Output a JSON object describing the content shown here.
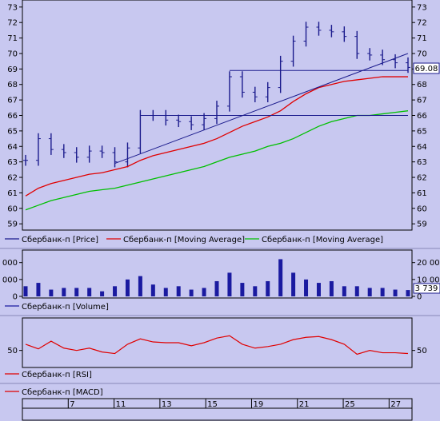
{
  "colors": {
    "background": "#c8c8f0",
    "price": "#1a1a8c",
    "ma_fast": "#e00000",
    "ma_slow": "#00c000",
    "rsi": "#e00000",
    "volume": "#1a1aa0",
    "axis": "#000000",
    "grid": "#a8a8d8",
    "last_value_bg": "#ffffff"
  },
  "chart_data": [
    {
      "type": "line",
      "panel": "price",
      "y_ticks": [
        59,
        60,
        61,
        62,
        63,
        64,
        65,
        66,
        67,
        68,
        69,
        70,
        71,
        72,
        73
      ],
      "ylim": [
        58.7,
        73.3
      ],
      "grid": false,
      "legend_position": "bottom",
      "last_value_label": "69.08",
      "series": [
        {
          "name": "Сбербанк-п [Price]",
          "style": "ohlc-bars",
          "x": [
            0,
            1,
            2,
            3,
            4,
            5,
            6,
            7,
            8,
            9,
            10,
            11,
            12,
            13,
            14,
            15,
            16,
            17,
            18,
            19,
            20,
            21,
            22,
            23,
            24,
            25,
            26,
            27,
            28,
            29,
            30
          ],
          "values": [
            63.1,
            64.5,
            63.8,
            63.6,
            63.3,
            63.7,
            63.6,
            63.0,
            63.9,
            66.0,
            66.0,
            65.7,
            65.6,
            65.4,
            65.8,
            66.6,
            68.5,
            67.5,
            67.2,
            67.8,
            69.5,
            70.8,
            71.7,
            71.5,
            71.4,
            71.1,
            70.0,
            69.9,
            69.6,
            69.4,
            69.1
          ]
        },
        {
          "name": "Сбербанк-п [Moving Average]",
          "x": [
            0,
            1,
            2,
            3,
            4,
            5,
            6,
            7,
            8,
            9,
            10,
            11,
            12,
            13,
            14,
            15,
            16,
            17,
            18,
            19,
            20,
            21,
            22,
            23,
            24,
            25,
            26,
            27,
            28,
            29,
            30
          ],
          "values": [
            60.8,
            61.3,
            61.6,
            61.8,
            62.0,
            62.2,
            62.3,
            62.5,
            62.7,
            63.1,
            63.4,
            63.6,
            63.8,
            64.0,
            64.2,
            64.5,
            64.9,
            65.3,
            65.6,
            65.9,
            66.3,
            66.9,
            67.4,
            67.8,
            68.0,
            68.2,
            68.3,
            68.4,
            68.5,
            68.5,
            68.5
          ]
        },
        {
          "name": "Сбербанк-п [Moving Average]",
          "x": [
            0,
            1,
            2,
            3,
            4,
            5,
            6,
            7,
            8,
            9,
            10,
            11,
            12,
            13,
            14,
            15,
            16,
            17,
            18,
            19,
            20,
            21,
            22,
            23,
            24,
            25,
            26,
            27,
            28,
            29,
            30
          ],
          "values": [
            59.9,
            60.2,
            60.5,
            60.7,
            60.9,
            61.1,
            61.2,
            61.3,
            61.5,
            61.7,
            61.9,
            62.1,
            62.3,
            62.5,
            62.7,
            63.0,
            63.3,
            63.5,
            63.7,
            64.0,
            64.2,
            64.5,
            64.9,
            65.3,
            65.6,
            65.8,
            66.0,
            66.0,
            66.1,
            66.2,
            66.3
          ]
        }
      ],
      "annotations": [
        {
          "kind": "trendline",
          "x": [
            7,
            30
          ],
          "y": [
            62.9,
            70.0
          ]
        },
        {
          "kind": "horizontal",
          "x": [
            9,
            30
          ],
          "y": 66.0
        },
        {
          "kind": "horizontal",
          "x": [
            16,
            30
          ],
          "y": 68.9
        }
      ]
    },
    {
      "type": "bar",
      "panel": "volume",
      "y_ticks": [
        0,
        10000,
        20000
      ],
      "y_tick_labels": [
        "0",
        "10 000",
        "20 000"
      ],
      "ylim": [
        0,
        26000
      ],
      "legend_position": "bottom",
      "last_value_label": "3 739",
      "series": [
        {
          "name": "Сбербанк-п [Volume]",
          "x": [
            0,
            1,
            2,
            3,
            4,
            5,
            6,
            7,
            8,
            9,
            10,
            11,
            12,
            13,
            14,
            15,
            16,
            17,
            18,
            19,
            20,
            21,
            22,
            23,
            24,
            25,
            26,
            27,
            28,
            29,
            30
          ],
          "values": [
            6000,
            8000,
            4000,
            5000,
            5000,
            5000,
            3000,
            6000,
            10000,
            12000,
            7000,
            5000,
            6000,
            4000,
            5000,
            9000,
            14000,
            8000,
            6000,
            9000,
            22000,
            14000,
            10000,
            8000,
            9000,
            6000,
            6000,
            5000,
            5000,
            4000,
            3739
          ]
        }
      ]
    },
    {
      "type": "line",
      "panel": "rsi",
      "y_ticks": [
        50
      ],
      "ylim": [
        30,
        90
      ],
      "legend_position": "bottom",
      "series": [
        {
          "name": "Сбербанк-п [RSI]",
          "x": [
            0,
            1,
            2,
            3,
            4,
            5,
            6,
            7,
            8,
            9,
            10,
            11,
            12,
            13,
            14,
            15,
            16,
            17,
            18,
            19,
            20,
            21,
            22,
            23,
            24,
            25,
            26,
            27,
            28,
            29,
            30
          ],
          "values": [
            58,
            52,
            62,
            53,
            50,
            53,
            48,
            46,
            58,
            65,
            61,
            60,
            60,
            56,
            60,
            66,
            69,
            58,
            53,
            55,
            58,
            64,
            67,
            68,
            64,
            58,
            45,
            50,
            47,
            47,
            46
          ]
        }
      ]
    },
    {
      "type": "line",
      "panel": "macd",
      "legend_position": "top",
      "series": [
        {
          "name": "Сбербанк-п [MACD]",
          "x": [],
          "values": []
        }
      ]
    }
  ],
  "date_axis": {
    "labels": [
      "7",
      "11",
      "13",
      "15",
      "19",
      "21",
      "25",
      "27"
    ],
    "positions": [
      4,
      8,
      12,
      16,
      20,
      24,
      28,
      32
    ]
  },
  "legend": {
    "price": [
      {
        "label": "Сбербанк-п [Price]",
        "color": "#1a1a8c"
      },
      {
        "label": "Сбербанк-п [Moving Average]",
        "color": "#e00000"
      },
      {
        "label": "Сбербанк-п [Moving Average]",
        "color": "#00c000"
      }
    ],
    "volume": [
      {
        "label": "Сбербанк-п [Volume]",
        "color": "#1a1aa0"
      }
    ],
    "rsi": [
      {
        "label": "Сбербанк-п [RSI]",
        "color": "#e00000"
      }
    ],
    "macd": [
      {
        "label": "Сбербанк-п [MACD]",
        "color": "#e00000"
      }
    ]
  }
}
